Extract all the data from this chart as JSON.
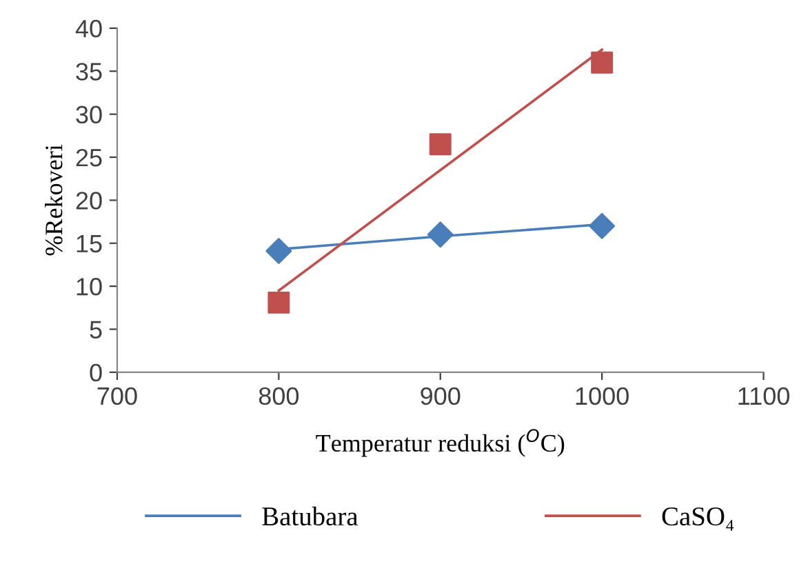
{
  "chart_data": {
    "type": "scatter",
    "xlabel": "Temperatur reduksi ($^{O}$C)",
    "ylabel": "%Rekoveri",
    "x": [
      800,
      900,
      1000
    ],
    "series": [
      {
        "color": "#4a7ebb",
        "values": [
          14.1,
          16,
          17
        ],
        "marker": "diamond"
      },
      {
        "color": "#c0504d",
        "values": [
          8.1,
          26.5,
          36
        ],
        "marker": "square"
      },
      {
        "name": "Batubara",
        "type": "line",
        "color": "#4a7ebb",
        "values": [
          14.3,
          15.8,
          17.2
        ],
        "marker": "none"
      },
      {
        "name": "CaSO₄",
        "type": "line",
        "color": "#c0504d",
        "values": [
          9.5,
          23.5,
          37.5
        ],
        "marker": "none"
      }
    ],
    "xlim": [
      700,
      1100
    ],
    "xticks": [
      700,
      800,
      900,
      1000,
      1100
    ],
    "ylim": [
      0,
      40
    ],
    "yticks": [
      0,
      5,
      10,
      15,
      20,
      25,
      30,
      35,
      40
    ],
    "grid": false,
    "legend": "bottom"
  }
}
